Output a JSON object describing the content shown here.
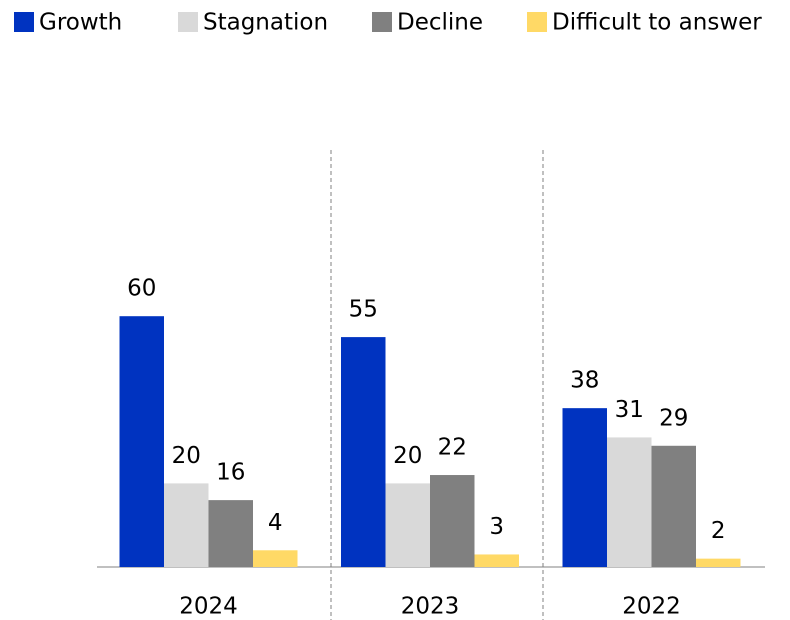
{
  "chart_data": {
    "type": "bar",
    "categories": [
      "2024",
      "2023",
      "2022"
    ],
    "series": [
      {
        "name": "Growth",
        "color": "#0033c0",
        "values": [
          60,
          55,
          38
        ]
      },
      {
        "name": "Stagnation",
        "color": "#d9d9d9",
        "values": [
          20,
          20,
          31
        ]
      },
      {
        "name": "Decline",
        "color": "#808080",
        "values": [
          16,
          22,
          29
        ]
      },
      {
        "name": "Difficult to answer",
        "color": "#ffd966",
        "values": [
          4,
          3,
          2
        ]
      }
    ],
    "legend": "top"
  }
}
